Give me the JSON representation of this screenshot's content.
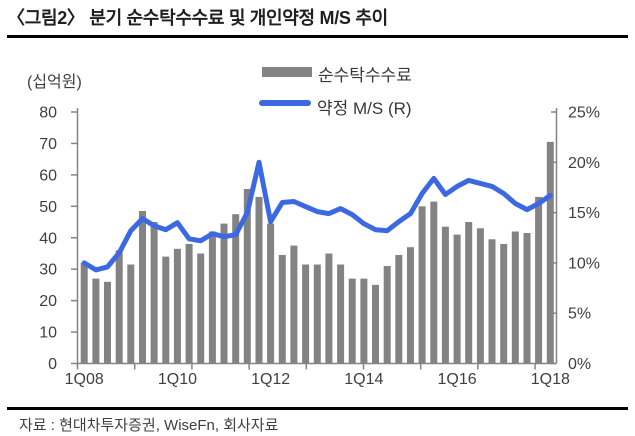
{
  "title": "〈그림2〉 분기 순수탁수수료 및 개인약정 M/S 추이",
  "unit_label": "(십억원)",
  "source": "자료 : 현대차투자증권, WiseFn, 회사자료",
  "legend": {
    "bar": "순수탁수수료",
    "line": "약정 M/S (R)"
  },
  "colors": {
    "bar": "#838383",
    "line": "#3c69e1",
    "axis": "#848484",
    "axis_text": "#3f3f3f",
    "title_text": "#1f1f1f",
    "rule": "#000000"
  },
  "chart_data": {
    "type": "bar+line",
    "title": "분기 순수탁수수료 및 개인약정 M/S 추이",
    "categories": [
      "1Q08",
      "2Q08",
      "3Q08",
      "4Q08",
      "1Q09",
      "2Q09",
      "3Q09",
      "4Q09",
      "1Q10",
      "2Q10",
      "3Q10",
      "4Q10",
      "1Q11",
      "2Q11",
      "3Q11",
      "4Q11",
      "1Q12",
      "2Q12",
      "3Q12",
      "4Q12",
      "1Q13",
      "2Q13",
      "3Q13",
      "4Q13",
      "1Q14",
      "2Q14",
      "3Q14",
      "4Q14",
      "1Q15",
      "2Q15",
      "3Q15",
      "4Q15",
      "1Q16",
      "2Q16",
      "3Q16",
      "4Q16",
      "1Q17",
      "2Q17",
      "3Q17",
      "4Q17",
      "1Q18"
    ],
    "x_tick_labels": [
      "1Q08",
      "1Q10",
      "1Q12",
      "1Q14",
      "1Q16",
      "1Q18"
    ],
    "x_tick_label_indices": [
      0,
      8,
      16,
      24,
      32,
      40
    ],
    "series": [
      {
        "name": "순수탁수수료",
        "type": "bar",
        "axis": "left",
        "unit": "십억원",
        "values": [
          32,
          27,
          26,
          36,
          31.5,
          48.5,
          45,
          34,
          36.5,
          38,
          35,
          42,
          44.5,
          47.5,
          55.5,
          53,
          44.5,
          34.5,
          37.5,
          31.5,
          31.5,
          35,
          31.5,
          27,
          27,
          25,
          31,
          34.5,
          37,
          50,
          51.5,
          43.5,
          41,
          45,
          43,
          39.5,
          38,
          42,
          41.5,
          53,
          70.5
        ]
      },
      {
        "name": "약정 M/S (R)",
        "type": "line",
        "axis": "right",
        "unit": "%",
        "values": [
          10,
          9.3,
          9.6,
          11,
          13.2,
          14.4,
          13.7,
          13.3,
          14,
          12.4,
          12.2,
          12.9,
          12.6,
          12.8,
          15,
          20,
          14.1,
          16,
          16.1,
          15.6,
          15.1,
          14.9,
          15.4,
          14.8,
          13.9,
          13.3,
          13.2,
          14.1,
          14.9,
          16.9,
          18.4,
          16.8,
          17.6,
          18.2,
          17.9,
          17.6,
          16.9,
          15.9,
          15.3,
          15.9,
          16.7
        ]
      }
    ],
    "left_axis": {
      "label": "(십억원)",
      "range": [
        0,
        80
      ],
      "tick_values": [
        0,
        10,
        20,
        30,
        40,
        50,
        60,
        70,
        80
      ]
    },
    "right_axis": {
      "range": [
        0,
        25
      ],
      "tick_labels": [
        "0%",
        "5%",
        "10%",
        "15%",
        "20%",
        "25%"
      ],
      "tick_values": [
        0,
        5,
        10,
        15,
        20,
        25
      ]
    },
    "grid": false,
    "legend_position": "top"
  }
}
